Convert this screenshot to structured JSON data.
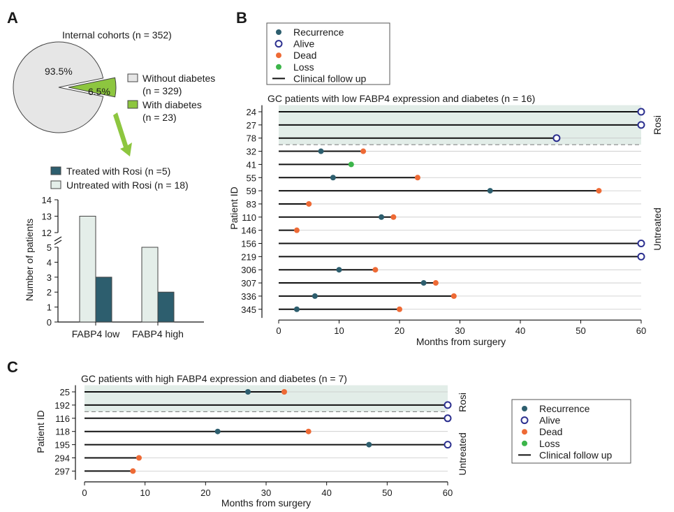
{
  "colors": {
    "recurrence": "#2d5e6e",
    "alive": "#2b2f8f",
    "dead": "#ee6a35",
    "loss": "#3cb54a",
    "pie_without": "#e6e6e6",
    "pie_with": "#8dc63f",
    "treated": "#2d5e6e",
    "untreated": "#e4eee9",
    "rosi_band": "#e2ede8",
    "arrow": "#8dc63f"
  },
  "panel_a": {
    "letter": "A",
    "pie_title": "Internal cohorts (n = 352)",
    "pie_legend": [
      {
        "label": "Without diabetes",
        "sub": "(n = 329)",
        "color_key": "pie_without"
      },
      {
        "label": "With diabetes",
        "sub": "(n = 23)",
        "color_key": "pie_with"
      }
    ],
    "bar_legend": [
      {
        "label": "Treated with Rosi (n =5)",
        "color_key": "treated"
      },
      {
        "label": "Untreated with Rosi (n = 18)",
        "color_key": "untreated"
      }
    ],
    "bar_ylabel": "Number of patients",
    "bar_yticks_lower": [
      "0",
      "1",
      "2",
      "3",
      "4",
      "5"
    ],
    "bar_yticks_upper": [
      "12",
      "13",
      "14"
    ]
  },
  "panel_b": {
    "letter": "B",
    "title": "GC patients with low FABP4 expression and diabetes (n = 16)",
    "ylabel": "Patient ID",
    "xlabel": "Months from surgery",
    "group_rosi": "Rosi",
    "group_untreated": "Untreated",
    "legend": [
      {
        "label": "Recurrence",
        "marker": "recurrence"
      },
      {
        "label": "Alive",
        "marker": "alive"
      },
      {
        "label": "Dead",
        "marker": "dead"
      },
      {
        "label": "Loss",
        "marker": "loss"
      },
      {
        "label": "Clinical follow up",
        "marker": "line"
      }
    ]
  },
  "panel_c": {
    "letter": "C",
    "title": "GC patients with high FABP4 expression and diabetes (n = 7)",
    "ylabel": "Patient ID",
    "xlabel": "Months from surgery",
    "group_rosi": "Rosi",
    "group_untreated": "Untreated",
    "legend": [
      {
        "label": "Recurrence",
        "marker": "recurrence"
      },
      {
        "label": "Alive",
        "marker": "alive"
      },
      {
        "label": "Dead",
        "marker": "dead"
      },
      {
        "label": "Loss",
        "marker": "loss"
      },
      {
        "label": "Clinical follow up",
        "marker": "line"
      }
    ]
  },
  "chart_data": [
    {
      "type": "pie",
      "title": "Internal cohorts (n = 352)",
      "slices": [
        {
          "label": "Without diabetes",
          "value": 93.5,
          "display": "93.5%",
          "n": 329
        },
        {
          "label": "With diabetes",
          "value": 6.5,
          "display": "6.5%",
          "n": 23
        }
      ]
    },
    {
      "type": "bar",
      "categories": [
        "FABP4 low",
        "FABP4 high"
      ],
      "series": [
        {
          "name": "Untreated with Rosi (n = 18)",
          "values": [
            13,
            5
          ]
        },
        {
          "name": "Treated with Rosi (n =5)",
          "values": [
            3,
            2
          ]
        }
      ],
      "ylabel": "Number of patients",
      "ylim": [
        0,
        14
      ],
      "axis_break": [
        5,
        12
      ]
    },
    {
      "type": "scatter",
      "title": "GC patients with low FABP4 expression and diabetes (n = 16)",
      "xlabel": "Months from surgery",
      "ylabel": "Patient ID",
      "xlim": [
        0,
        60
      ],
      "xticks": [
        0,
        10,
        20,
        30,
        40,
        50,
        60
      ],
      "patients": [
        {
          "id": "24",
          "group": "Rosi",
          "followup": 60,
          "recurrence": null,
          "end": "alive"
        },
        {
          "id": "27",
          "group": "Rosi",
          "followup": 60,
          "recurrence": null,
          "end": "alive"
        },
        {
          "id": "78",
          "group": "Rosi",
          "followup": 46,
          "recurrence": null,
          "end": "alive"
        },
        {
          "id": "32",
          "group": "Untreated",
          "followup": 14,
          "recurrence": 7,
          "end": "dead"
        },
        {
          "id": "41",
          "group": "Untreated",
          "followup": 12,
          "recurrence": null,
          "end": "loss"
        },
        {
          "id": "55",
          "group": "Untreated",
          "followup": 23,
          "recurrence": 9,
          "end": "dead"
        },
        {
          "id": "59",
          "group": "Untreated",
          "followup": 53,
          "recurrence": 35,
          "end": "dead"
        },
        {
          "id": "83",
          "group": "Untreated",
          "followup": 5,
          "recurrence": null,
          "end": "dead"
        },
        {
          "id": "110",
          "group": "Untreated",
          "followup": 19,
          "recurrence": 17,
          "end": "dead"
        },
        {
          "id": "146",
          "group": "Untreated",
          "followup": 3,
          "recurrence": null,
          "end": "dead"
        },
        {
          "id": "156",
          "group": "Untreated",
          "followup": 60,
          "recurrence": null,
          "end": "alive"
        },
        {
          "id": "219",
          "group": "Untreated",
          "followup": 60,
          "recurrence": null,
          "end": "alive"
        },
        {
          "id": "306",
          "group": "Untreated",
          "followup": 16,
          "recurrence": 10,
          "end": "dead"
        },
        {
          "id": "307",
          "group": "Untreated",
          "followup": 26,
          "recurrence": 24,
          "end": "dead"
        },
        {
          "id": "336",
          "group": "Untreated",
          "followup": 29,
          "recurrence": 6,
          "end": "dead"
        },
        {
          "id": "345",
          "group": "Untreated",
          "followup": 20,
          "recurrence": 3,
          "end": "dead"
        }
      ]
    },
    {
      "type": "scatter",
      "title": "GC patients with high FABP4 expression and diabetes (n = 7)",
      "xlabel": "Months from surgery",
      "ylabel": "Patient ID",
      "xlim": [
        0,
        60
      ],
      "xticks": [
        0,
        10,
        20,
        30,
        40,
        50,
        60
      ],
      "patients": [
        {
          "id": "25",
          "group": "Rosi",
          "followup": 33,
          "recurrence": 27,
          "end": "dead"
        },
        {
          "id": "192",
          "group": "Rosi",
          "followup": 60,
          "recurrence": null,
          "end": "alive"
        },
        {
          "id": "116",
          "group": "Untreated",
          "followup": 60,
          "recurrence": null,
          "end": "alive"
        },
        {
          "id": "118",
          "group": "Untreated",
          "followup": 37,
          "recurrence": 22,
          "end": "dead"
        },
        {
          "id": "195",
          "group": "Untreated",
          "followup": 60,
          "recurrence": 47,
          "end": "alive"
        },
        {
          "id": "294",
          "group": "Untreated",
          "followup": 9,
          "recurrence": null,
          "end": "dead"
        },
        {
          "id": "297",
          "group": "Untreated",
          "followup": 8,
          "recurrence": null,
          "end": "dead"
        }
      ]
    }
  ]
}
